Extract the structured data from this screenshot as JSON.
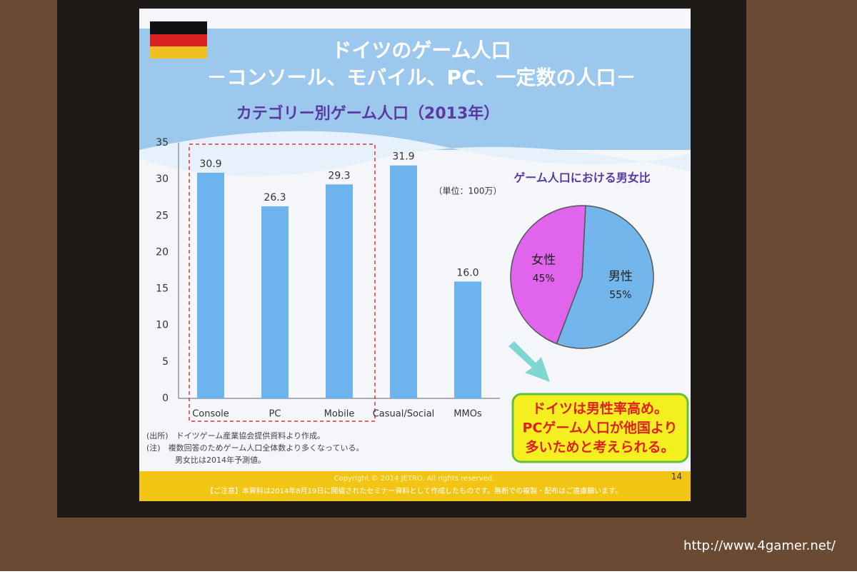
{
  "slide": {
    "title": "ドイツのゲーム人口",
    "subtitle": "－コンソール、モバイル、PC、一定数の人口－",
    "notes": [
      "(出所)　ドイツゲーム産業協会提供資料より作成。",
      "(注)　複数回答のためゲーム人口全体数より多くなっている。",
      "男女比は2014年予測値。"
    ],
    "callout": [
      "ドイツは男性率高め。",
      "PCゲーム人口が他国より",
      "多いためと考えられる。"
    ],
    "copyright": "Copyright © 2014  JETRO. All rights reserved.",
    "page_number": "14",
    "disclaimer": "【ご注意】本資料は2014年8月19日に開催されたセミナー資料として作成したものです。無断での複製・配布はご遠慮願います。",
    "watermark": "http://www.4gamer.net/"
  },
  "chart_data": [
    {
      "type": "bar",
      "title": "カテゴリー別ゲーム人口（2013年）",
      "unit_note": "（単位：100万）",
      "categories": [
        "Console",
        "PC",
        "Mobile",
        "Casual/Social",
        "MMOs"
      ],
      "values": [
        30.9,
        26.3,
        29.3,
        31.9,
        16.0
      ],
      "value_labels": [
        "30.9",
        "26.3",
        "29.3",
        "31.9",
        "16.0"
      ],
      "color": "#6cb4ee",
      "ylim": [
        0,
        35
      ],
      "yticks": [
        0,
        5,
        10,
        15,
        20,
        25,
        30,
        35
      ],
      "grid": false
    },
    {
      "type": "pie",
      "title": "ゲーム人口における男女比",
      "categories": [
        "女性",
        "男性"
      ],
      "values": [
        45,
        55
      ],
      "value_labels": [
        "45%",
        "55%"
      ],
      "colors": [
        "#e064ec",
        "#72b6ec"
      ]
    }
  ]
}
